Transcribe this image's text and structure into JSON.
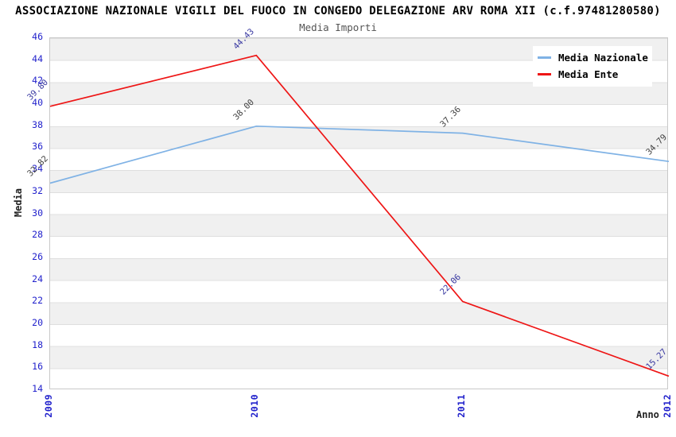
{
  "title": "ASSOCIAZIONE NAZIONALE VIGILI DEL FUOCO IN CONGEDO DELEGAZIONE ARV ROMA XII (c.f.97481280580)",
  "subtitle": "Media Importi",
  "colors": {
    "series_nazionale": "#7fb2e5",
    "series_ente": "#ee1515",
    "axis_tick_text": "#2222cc",
    "point_label_nazionale": "#404040",
    "point_label_ente": "#3636a0",
    "band_gray": "#f0f0f0",
    "plot_border": "#c9c9c9"
  },
  "chart_data": {
    "type": "line",
    "x": [
      "2009",
      "2010",
      "2011",
      "2012"
    ],
    "xlabel": "Anno",
    "ylabel": "Media",
    "ylim": [
      14,
      46
    ],
    "ytick_step": 2,
    "grid": "horizontal-alternating-bands",
    "legend_position": "top-right-inside",
    "series": [
      {
        "name": "Media Nazionale",
        "color": "#7fb2e5",
        "label_color": "#404040",
        "values": [
          32.82,
          38.0,
          37.36,
          34.79
        ]
      },
      {
        "name": "Media Ente",
        "color": "#ee1515",
        "label_color": "#3636a0",
        "values": [
          39.8,
          44.43,
          22.06,
          15.27
        ]
      }
    ]
  },
  "legend": {
    "items": [
      {
        "label": "Media Nazionale"
      },
      {
        "label": "Media Ente"
      }
    ]
  }
}
